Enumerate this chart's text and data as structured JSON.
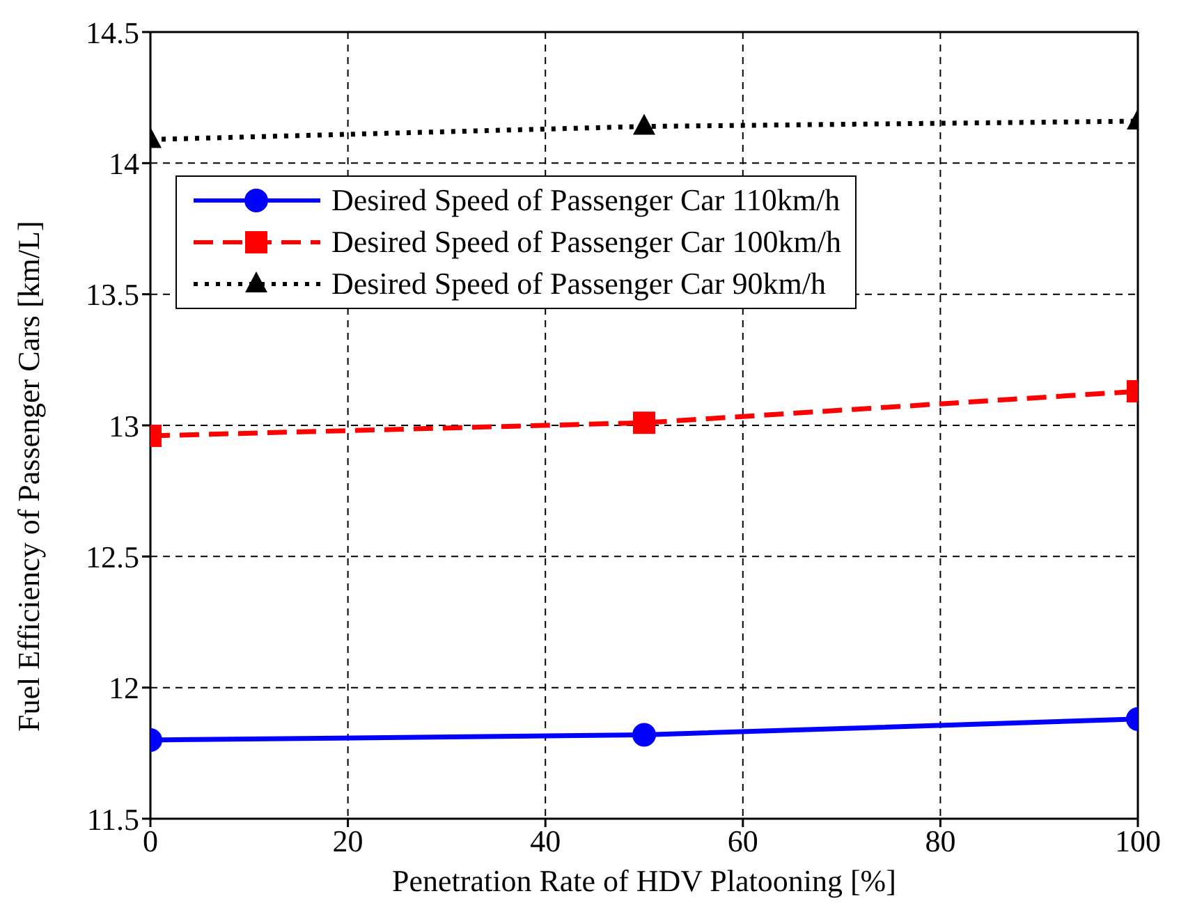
{
  "chart_data": {
    "type": "line",
    "xlabel": "Penetration Rate of HDV Platooning [%]",
    "ylabel": "Fuel Efficiency of Passenger Cars [km/L]",
    "x": [
      0,
      50,
      100
    ],
    "series": [
      {
        "name": "Desired Speed of Passenger Car 110km/h",
        "color": "#0000ff",
        "values": [
          11.8,
          11.82,
          11.88
        ],
        "marker": "circle",
        "line_style": "solid"
      },
      {
        "name": "Desired Speed of Passenger Car 100km/h",
        "color": "#ff0000",
        "values": [
          12.96,
          13.01,
          13.13
        ],
        "marker": "square",
        "line_style": "dashed"
      },
      {
        "name": "Desired Speed of Passenger Car 90km/h",
        "color": "#000000",
        "values": [
          14.09,
          14.14,
          14.16
        ],
        "marker": "triangle",
        "line_style": "dotted"
      }
    ],
    "xlim": [
      0,
      100
    ],
    "xticks": [
      0,
      20,
      40,
      60,
      80,
      100
    ],
    "ylim": [
      11.5,
      14.5
    ],
    "yticks": [
      11.5,
      12,
      12.5,
      13,
      13.5,
      14,
      14.5
    ],
    "grid": true,
    "legend": "top left"
  }
}
